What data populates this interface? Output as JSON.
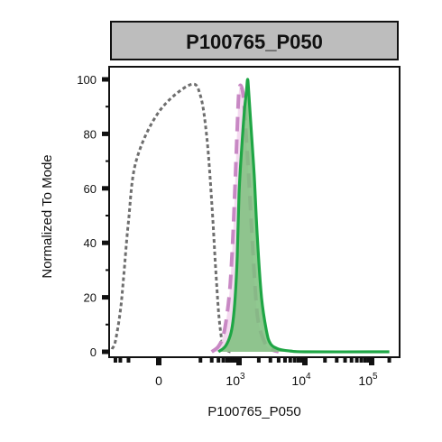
{
  "chart_data": {
    "type": "area",
    "title": "P100765_P050",
    "xlabel": "P100765_P050",
    "ylabel": "Normalized To Mode",
    "x_scale": "biexponential",
    "ylim": [
      0,
      100
    ],
    "yticks": [
      0,
      20,
      40,
      60,
      80,
      100
    ],
    "xtick_labels": [
      {
        "value": 0,
        "base": "0",
        "exp": ""
      },
      {
        "value": 1000,
        "base": "10",
        "exp": "3"
      },
      {
        "value": 10000,
        "base": "10",
        "exp": "4"
      },
      {
        "value": 100000,
        "base": "10",
        "exp": "5"
      }
    ],
    "grid": false,
    "legend": "none",
    "series": [
      {
        "color": "#6e6e6e",
        "style": "dotted",
        "filled": false,
        "x": [
          -400,
          -300,
          -200,
          -150,
          -100,
          -50,
          0,
          50,
          100,
          150,
          200,
          250,
          300,
          350,
          400,
          500,
          600,
          700
        ],
        "y": [
          1,
          4,
          15,
          28,
          48,
          70,
          88,
          98,
          94,
          78,
          55,
          32,
          15,
          6,
          2,
          0.5,
          0,
          0
        ]
      },
      {
        "color": "#c888c4",
        "fill": "#f3d6ee",
        "style": "dashed",
        "filled": true,
        "x": [
          200,
          300,
          400,
          500,
          600,
          700,
          800,
          900,
          1000,
          1100,
          1200,
          1400,
          1600,
          1800,
          2000,
          2500,
          3000,
          4000
        ],
        "y": [
          0,
          2,
          6,
          14,
          25,
          42,
          62,
          82,
          96,
          97,
          90,
          65,
          40,
          20,
          10,
          3,
          1,
          0
        ]
      },
      {
        "color": "#1fa645",
        "fill": "#7dbf7d",
        "style": "solid",
        "filled": true,
        "x": [
          300,
          450,
          600,
          700,
          800,
          900,
          1000,
          1100,
          1200,
          1300,
          1350,
          1400,
          1500,
          1700,
          1900,
          2200,
          2600,
          3000,
          4000,
          6000,
          10000,
          100000,
          200000
        ],
        "y": [
          0,
          2,
          6,
          11,
          20,
          35,
          58,
          75,
          88,
          96,
          100,
          96,
          85,
          65,
          42,
          20,
          8,
          3,
          1,
          0.3,
          0,
          0,
          0
        ]
      }
    ]
  }
}
